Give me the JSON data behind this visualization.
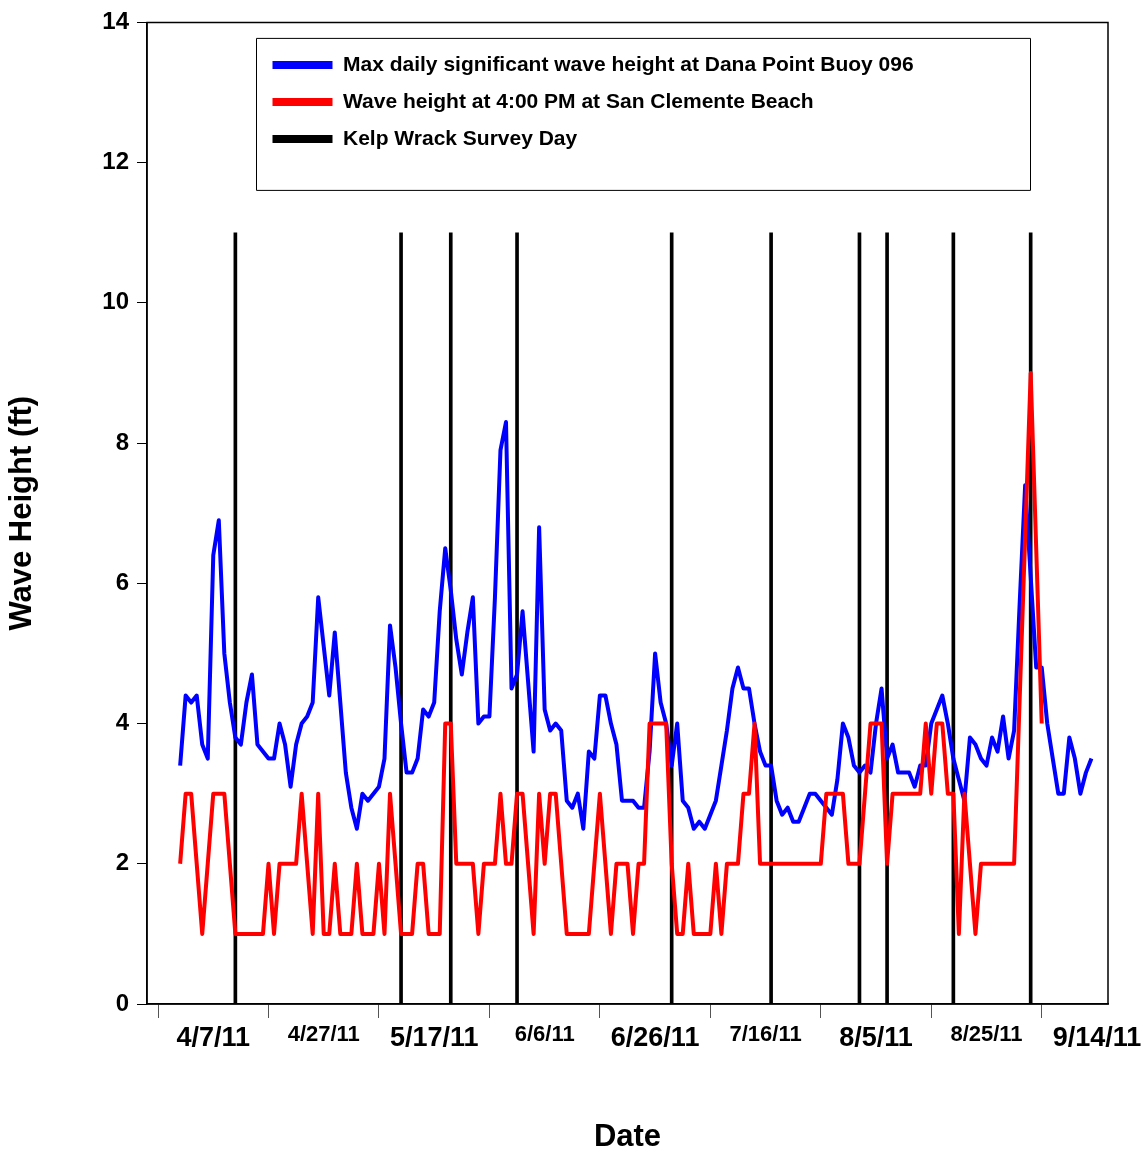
{
  "chart_data": {
    "type": "line",
    "xlabel": "Date",
    "ylabel": "Wave Height (ft)",
    "x": [
      "2011-04-01",
      "2011-04-02",
      "2011-04-03",
      "2011-04-04",
      "2011-04-05",
      "2011-04-06",
      "2011-04-07",
      "2011-04-08",
      "2011-04-09",
      "2011-04-10",
      "2011-04-11",
      "2011-04-12",
      "2011-04-13",
      "2011-04-14",
      "2011-04-15",
      "2011-04-16",
      "2011-04-17",
      "2011-04-18",
      "2011-04-19",
      "2011-04-20",
      "2011-04-21",
      "2011-04-22",
      "2011-04-23",
      "2011-04-24",
      "2011-04-25",
      "2011-04-26",
      "2011-04-27",
      "2011-04-28",
      "2011-04-29",
      "2011-04-30",
      "2011-05-01",
      "2011-05-02",
      "2011-05-03",
      "2011-05-04",
      "2011-05-05",
      "2011-05-06",
      "2011-05-07",
      "2011-05-08",
      "2011-05-09",
      "2011-05-10",
      "2011-05-11",
      "2011-05-12",
      "2011-05-13",
      "2011-05-14",
      "2011-05-15",
      "2011-05-16",
      "2011-05-17",
      "2011-05-18",
      "2011-05-19",
      "2011-05-20",
      "2011-05-21",
      "2011-05-22",
      "2011-05-23",
      "2011-05-24",
      "2011-05-25",
      "2011-05-26",
      "2011-05-27",
      "2011-05-28",
      "2011-05-29",
      "2011-05-30",
      "2011-05-31",
      "2011-06-01",
      "2011-06-02",
      "2011-06-03",
      "2011-06-04",
      "2011-06-05",
      "2011-06-06",
      "2011-06-07",
      "2011-06-08",
      "2011-06-09",
      "2011-06-10",
      "2011-06-11",
      "2011-06-12",
      "2011-06-13",
      "2011-06-14",
      "2011-06-15",
      "2011-06-16",
      "2011-06-17",
      "2011-06-18",
      "2011-06-19",
      "2011-06-20",
      "2011-06-21",
      "2011-06-22",
      "2011-06-23",
      "2011-06-24",
      "2011-06-25",
      "2011-06-26",
      "2011-06-27",
      "2011-06-28",
      "2011-06-29",
      "2011-06-30",
      "2011-07-01",
      "2011-07-02",
      "2011-07-03",
      "2011-07-04",
      "2011-07-05",
      "2011-07-06",
      "2011-07-07",
      "2011-07-08",
      "2011-07-09",
      "2011-07-10",
      "2011-07-11",
      "2011-07-12",
      "2011-07-13",
      "2011-07-14",
      "2011-07-15",
      "2011-07-16",
      "2011-07-17",
      "2011-07-18",
      "2011-07-19",
      "2011-07-20",
      "2011-07-21",
      "2011-07-22",
      "2011-07-23",
      "2011-07-24",
      "2011-07-25",
      "2011-07-26",
      "2011-07-27",
      "2011-07-28",
      "2011-07-29",
      "2011-07-30",
      "2011-07-31",
      "2011-08-01",
      "2011-08-02",
      "2011-08-03",
      "2011-08-04",
      "2011-08-05",
      "2011-08-06",
      "2011-08-07",
      "2011-08-08",
      "2011-08-09",
      "2011-08-10",
      "2011-08-11",
      "2011-08-12",
      "2011-08-13",
      "2011-08-14",
      "2011-08-15",
      "2011-08-16",
      "2011-08-17",
      "2011-08-18",
      "2011-08-19",
      "2011-08-20",
      "2011-08-21",
      "2011-08-22",
      "2011-08-23",
      "2011-08-24",
      "2011-08-25",
      "2011-08-26",
      "2011-08-27",
      "2011-08-28",
      "2011-08-29",
      "2011-08-30",
      "2011-08-31",
      "2011-09-01",
      "2011-09-02",
      "2011-09-03",
      "2011-09-04",
      "2011-09-05",
      "2011-09-06",
      "2011-09-07",
      "2011-09-08",
      "2011-09-09",
      "2011-09-10",
      "2011-09-11",
      "2011-09-12",
      "2011-09-13"
    ],
    "series": [
      {
        "name": "Max daily significant wave height at Dana Point Buoy 096",
        "color": "#0000ff",
        "values": [
          3.4,
          4.4,
          4.3,
          4.4,
          3.7,
          3.5,
          6.4,
          6.9,
          5.0,
          4.3,
          3.8,
          3.7,
          4.3,
          4.7,
          3.7,
          3.6,
          3.5,
          3.5,
          4.0,
          3.7,
          3.1,
          3.7,
          4.0,
          4.1,
          4.3,
          5.8,
          5.1,
          4.4,
          5.3,
          4.3,
          3.3,
          2.8,
          2.5,
          3.0,
          2.9,
          3.0,
          3.1,
          3.5,
          5.4,
          4.8,
          4.0,
          3.3,
          3.3,
          3.5,
          4.2,
          4.1,
          4.3,
          5.6,
          6.5,
          5.9,
          5.2,
          4.7,
          5.3,
          5.8,
          4.0,
          4.1,
          4.1,
          5.8,
          7.9,
          8.3,
          4.5,
          4.7,
          5.6,
          4.6,
          3.6,
          6.8,
          4.2,
          3.9,
          4.0,
          3.9,
          2.9,
          2.8,
          3.0,
          2.5,
          3.6,
          3.5,
          4.4,
          4.4,
          4.0,
          3.7,
          2.9,
          2.9,
          2.9,
          2.8,
          2.8,
          3.6,
          5.0,
          4.3,
          4.0,
          3.4,
          4.0,
          2.9,
          2.8,
          2.5,
          2.6,
          2.5,
          2.7,
          2.9,
          3.4,
          3.9,
          4.5,
          4.8,
          4.5,
          4.5,
          4.0,
          3.6,
          3.4,
          3.4,
          2.9,
          2.7,
          2.8,
          2.6,
          2.6,
          2.8,
          3.0,
          3.0,
          2.9,
          2.8,
          2.7,
          3.2,
          4.0,
          3.8,
          3.4,
          3.3,
          3.4,
          3.3,
          4.0,
          4.5,
          3.5,
          3.7,
          3.3,
          3.3,
          3.3,
          3.1,
          3.4,
          3.4,
          4.0,
          4.2,
          4.4,
          4.0,
          3.5,
          3.2,
          2.9,
          3.8,
          3.7,
          3.5,
          3.4,
          3.8,
          3.6,
          4.1,
          3.5,
          3.9,
          5.7,
          7.4,
          6.1,
          4.8,
          4.8,
          4.0,
          3.5,
          3.0,
          3.0,
          3.8,
          3.5,
          3.0,
          3.3,
          3.5
        ]
      },
      {
        "name": "Wave height at 4:00 PM at San Clemente Beach",
        "color": "#ff0000",
        "x": [
          "2011-04-01",
          "2011-04-02",
          "2011-04-03",
          "2011-04-04",
          "2011-04-05",
          "2011-04-06",
          "2011-04-07",
          "2011-04-08",
          "2011-04-09",
          "2011-04-10",
          "2011-04-11",
          "2011-04-12",
          "2011-04-13",
          "2011-04-14",
          "2011-04-15",
          "2011-04-16",
          "2011-04-17",
          "2011-04-18",
          "2011-04-19",
          "2011-04-20",
          "2011-04-21",
          "2011-04-22",
          "2011-04-23",
          "2011-04-24",
          "2011-04-25",
          "2011-04-26",
          "2011-04-27",
          "2011-04-28",
          "2011-04-29",
          "2011-04-30",
          "2011-05-01",
          "2011-05-02",
          "2011-05-03",
          "2011-05-04",
          "2011-05-05",
          "2011-05-06",
          "2011-05-07",
          "2011-05-08",
          "2011-05-09",
          "2011-05-10",
          "2011-05-11",
          "2011-05-12",
          "2011-05-13",
          "2011-05-14",
          "2011-05-15",
          "2011-05-16",
          "2011-05-17",
          "2011-05-18",
          "2011-05-19",
          "2011-05-20",
          "2011-05-21",
          "2011-05-22",
          "2011-05-23",
          "2011-05-24",
          "2011-05-25",
          "2011-05-26",
          "2011-05-27",
          "2011-05-28",
          "2011-05-29",
          "2011-05-30",
          "2011-05-31",
          "2011-06-01",
          "2011-06-02",
          "2011-06-03",
          "2011-06-04",
          "2011-06-05",
          "2011-06-06",
          "2011-06-07",
          "2011-06-08",
          "2011-06-09",
          "2011-06-10",
          "2011-06-11",
          "2011-06-12",
          "2011-06-13",
          "2011-06-14",
          "2011-06-15",
          "2011-06-16",
          "2011-06-17",
          "2011-06-18",
          "2011-06-19",
          "2011-06-20",
          "2011-06-21",
          "2011-06-22",
          "2011-06-23",
          "2011-06-24",
          "2011-06-25",
          "2011-06-26",
          "2011-06-27",
          "2011-06-28",
          "2011-06-29",
          "2011-06-30",
          "2011-07-01",
          "2011-07-02",
          "2011-07-03",
          "2011-07-04",
          "2011-07-05",
          "2011-07-06",
          "2011-07-07",
          "2011-07-08",
          "2011-07-09",
          "2011-07-10",
          "2011-07-11",
          "2011-07-12",
          "2011-07-13",
          "2011-07-14",
          "2011-07-15",
          "2011-07-16",
          "2011-07-17",
          "2011-07-18",
          "2011-07-19",
          "2011-07-20",
          "2011-07-21",
          "2011-07-22",
          "2011-07-23",
          "2011-07-24",
          "2011-07-25",
          "2011-07-26",
          "2011-07-27",
          "2011-07-28",
          "2011-07-29",
          "2011-07-30",
          "2011-07-31",
          "2011-08-01",
          "2011-08-02",
          "2011-08-03",
          "2011-08-04",
          "2011-08-05",
          "2011-08-06",
          "2011-08-07",
          "2011-08-08",
          "2011-08-09",
          "2011-08-10",
          "2011-08-11",
          "2011-08-12",
          "2011-08-13",
          "2011-08-14",
          "2011-08-15",
          "2011-08-16",
          "2011-08-17",
          "2011-08-18",
          "2011-08-19",
          "2011-08-20",
          "2011-08-21",
          "2011-08-22",
          "2011-08-23",
          "2011-08-24",
          "2011-08-25",
          "2011-08-26",
          "2011-08-27",
          "2011-08-28",
          "2011-08-29",
          "2011-08-30",
          "2011-09-02",
          "2011-09-04"
        ],
        "values": [
          2,
          3,
          3,
          2,
          1,
          2,
          3,
          3,
          3,
          2,
          1,
          1,
          1,
          1,
          1,
          1,
          2,
          1,
          2,
          2,
          2,
          2,
          3,
          2,
          1,
          3,
          1,
          1,
          2,
          1,
          1,
          1,
          2,
          1,
          1,
          1,
          2,
          1,
          3,
          2,
          1,
          1,
          1,
          2,
          2,
          1,
          1,
          1,
          4,
          4,
          2,
          2,
          2,
          2,
          1,
          2,
          2,
          2,
          3,
          2,
          2,
          3,
          3,
          2,
          1,
          3,
          2,
          3,
          3,
          2,
          1,
          1,
          1,
          1,
          1,
          2,
          3,
          2,
          1,
          2,
          2,
          2,
          1,
          2,
          2,
          4,
          4,
          4,
          4,
          2,
          1,
          1,
          2,
          1,
          1,
          1,
          1,
          2,
          1,
          2,
          2,
          2,
          3,
          3,
          4,
          2,
          2,
          2,
          2,
          2,
          2,
          2,
          2,
          2,
          2,
          2,
          2,
          3,
          3,
          3,
          3,
          2,
          2,
          2,
          3,
          4,
          4,
          4,
          2,
          3,
          3,
          3,
          3,
          3,
          3,
          4,
          3,
          4,
          4,
          3,
          3,
          1,
          3,
          2,
          1,
          2,
          2,
          2,
          2,
          2,
          2,
          2,
          9,
          4
        ]
      },
      {
        "name": "Kelp Wrack Survey Day",
        "type": "bar",
        "color": "#000000",
        "x": [
          "2011-04-11",
          "2011-05-11",
          "2011-05-20",
          "2011-06-01",
          "2011-06-29",
          "2011-07-17",
          "2011-08-02",
          "2011-08-07",
          "2011-08-19",
          "2011-09-02"
        ],
        "values": [
          11,
          11,
          11,
          11,
          11,
          11,
          11,
          11,
          11,
          11
        ]
      }
    ],
    "xlim": [
      "2011-03-26",
      "2011-09-16"
    ],
    "xticks": [
      {
        "value": "2011-04-07",
        "label": "4/7/11"
      },
      {
        "value": "2011-04-27",
        "label": "4/27/11"
      },
      {
        "value": "2011-05-17",
        "label": "5/17/11"
      },
      {
        "value": "2011-06-06",
        "label": "6/6/11"
      },
      {
        "value": "2011-06-26",
        "label": "6/26/11"
      },
      {
        "value": "2011-07-16",
        "label": "7/16/11"
      },
      {
        "value": "2011-08-05",
        "label": "8/5/11"
      },
      {
        "value": "2011-08-25",
        "label": "8/25/11"
      },
      {
        "value": "2011-09-14",
        "label": "9/14/11"
      }
    ],
    "ylim": [
      0,
      14
    ],
    "yticks": [
      0,
      2,
      4,
      6,
      8,
      10,
      12,
      14
    ],
    "grid": false,
    "legend": "top"
  }
}
